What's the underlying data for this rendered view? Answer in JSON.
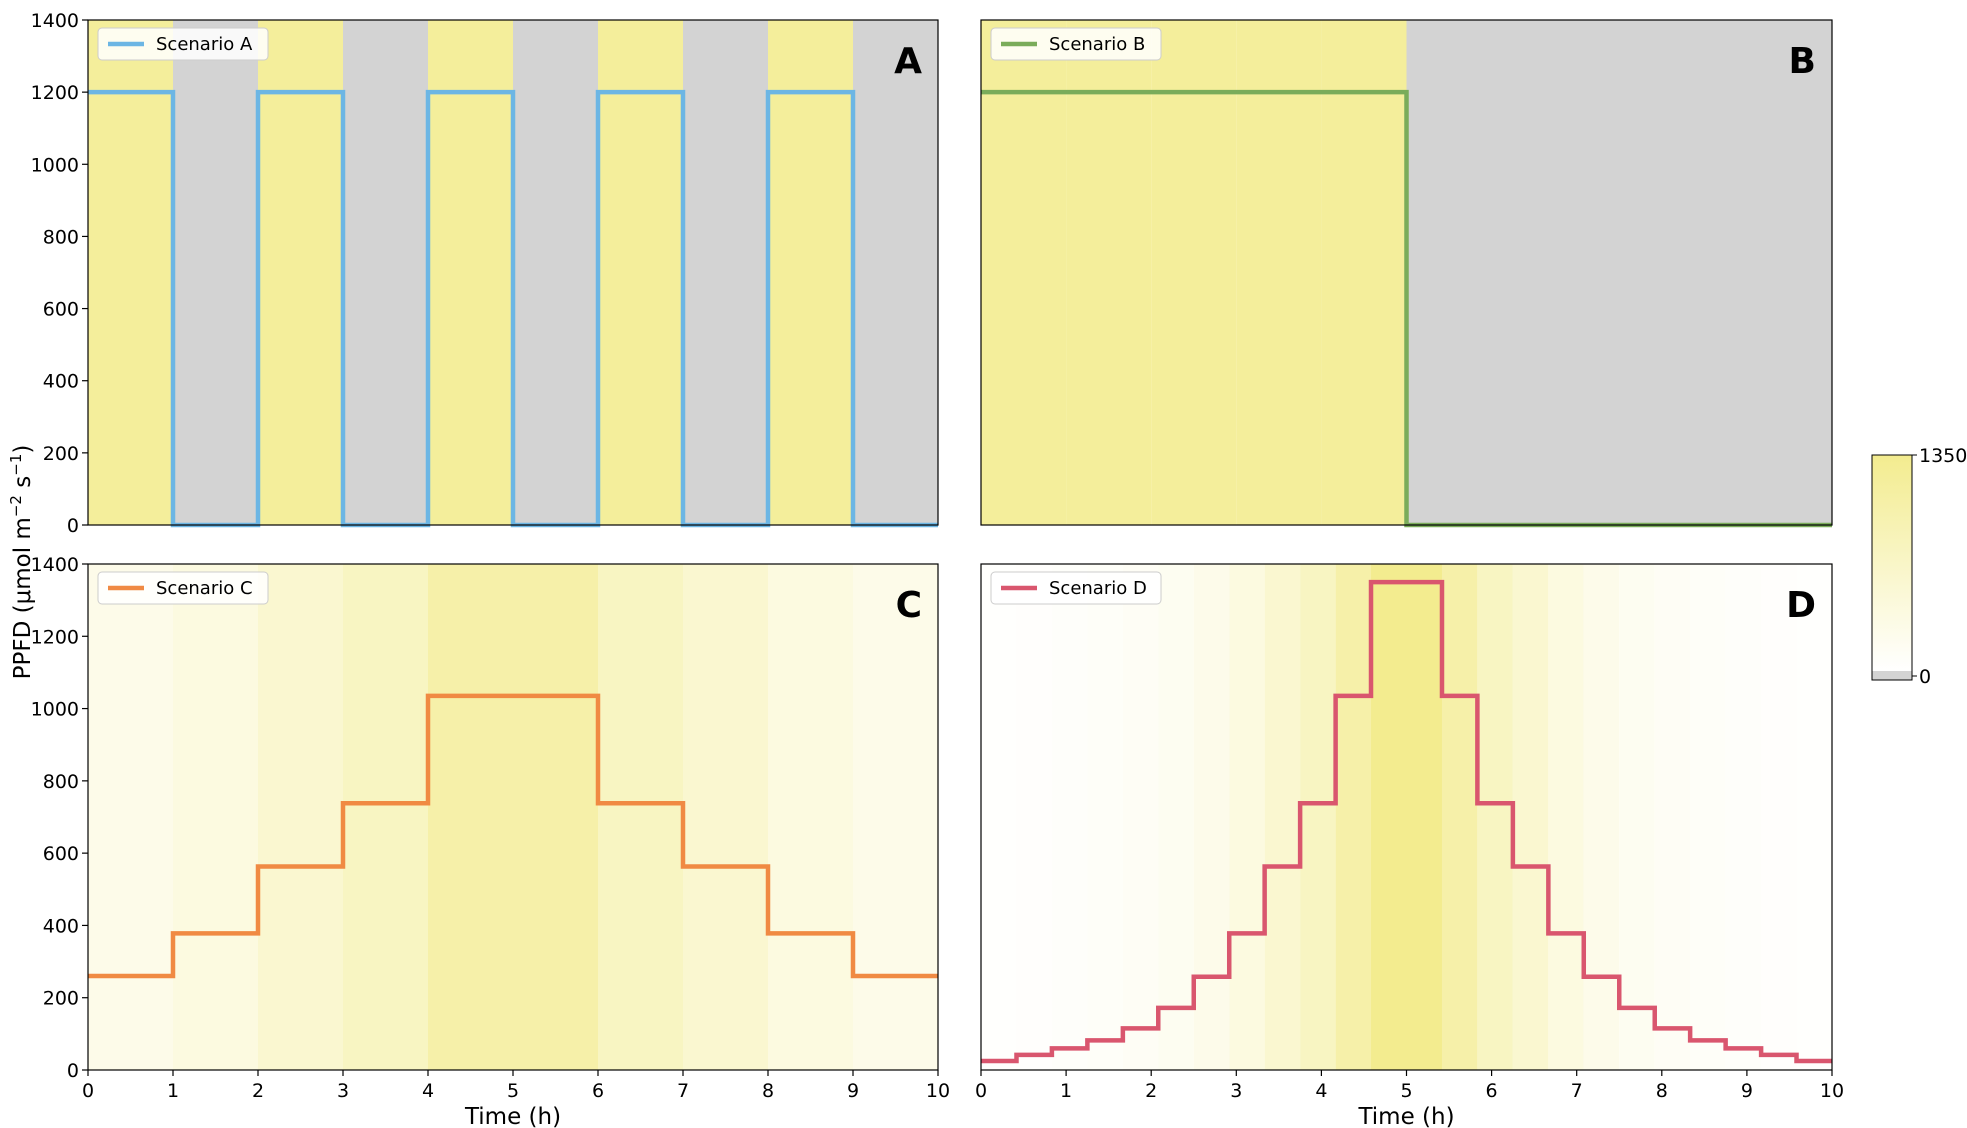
{
  "figure": {
    "ylabel": "PPFD (μmol m⁻² s⁻¹)",
    "ylabel_parts": {
      "prefix": "PPFD (μmol m",
      "exp1": "−2",
      "mid": " s",
      "exp2": "−1",
      "suffix": ")"
    }
  },
  "colorbar": {
    "max_label": "1350",
    "min_label": "0",
    "range": [
      0,
      1350
    ],
    "colors": {
      "zero": "#d3d3d3",
      "low": "#ffffff",
      "high": "#f3ec8f"
    }
  },
  "chart_data": [
    {
      "type": "line",
      "panel": "A",
      "legend": "Scenario A",
      "color": "#6cb6e4",
      "xlabel": "",
      "ylabel": "PPFD (μmol m⁻² s⁻¹)",
      "xlim": [
        0,
        10
      ],
      "ylim": [
        0,
        1400
      ],
      "xticks": [],
      "yticks": [
        0,
        200,
        400,
        600,
        800,
        1000,
        1200,
        1400
      ],
      "steps": [
        {
          "x0": 0,
          "x1": 1,
          "y": 1200
        },
        {
          "x0": 1,
          "x1": 2,
          "y": 0
        },
        {
          "x0": 2,
          "x1": 3,
          "y": 1200
        },
        {
          "x0": 3,
          "x1": 4,
          "y": 0
        },
        {
          "x0": 4,
          "x1": 5,
          "y": 1200
        },
        {
          "x0": 5,
          "x1": 6,
          "y": 0
        },
        {
          "x0": 6,
          "x1": 7,
          "y": 1200
        },
        {
          "x0": 7,
          "x1": 8,
          "y": 0
        },
        {
          "x0": 8,
          "x1": 9,
          "y": 1200
        },
        {
          "x0": 9,
          "x1": 10,
          "y": 0
        }
      ]
    },
    {
      "type": "line",
      "panel": "B",
      "legend": "Scenario B",
      "color": "#7aac5a",
      "xlabel": "",
      "ylabel": "",
      "xlim": [
        0,
        10
      ],
      "ylim": [
        0,
        1400
      ],
      "xticks": [],
      "yticks": [],
      "steps": [
        {
          "x0": 0,
          "x1": 1,
          "y": 1200
        },
        {
          "x0": 1,
          "x1": 2,
          "y": 1200
        },
        {
          "x0": 2,
          "x1": 3,
          "y": 1200
        },
        {
          "x0": 3,
          "x1": 4,
          "y": 1200
        },
        {
          "x0": 4,
          "x1": 5,
          "y": 1200
        },
        {
          "x0": 5,
          "x1": 10,
          "y": 0
        }
      ]
    },
    {
      "type": "line",
      "panel": "C",
      "legend": "Scenario C",
      "color": "#f08a43",
      "xlabel": "Time (h)",
      "ylabel": "PPFD (μmol m⁻² s⁻¹)",
      "xlim": [
        0,
        10
      ],
      "ylim": [
        0,
        1400
      ],
      "xticks": [
        0,
        1,
        2,
        3,
        4,
        5,
        6,
        7,
        8,
        9,
        10
      ],
      "yticks": [
        0,
        200,
        400,
        600,
        800,
        1000,
        1200,
        1400
      ],
      "steps": [
        {
          "x0": 0,
          "x1": 1,
          "y": 260
        },
        {
          "x0": 1,
          "x1": 2,
          "y": 378
        },
        {
          "x0": 2,
          "x1": 3,
          "y": 563
        },
        {
          "x0": 3,
          "x1": 4,
          "y": 738
        },
        {
          "x0": 4,
          "x1": 6,
          "y": 1035
        },
        {
          "x0": 6,
          "x1": 7,
          "y": 738
        },
        {
          "x0": 7,
          "x1": 8,
          "y": 563
        },
        {
          "x0": 8,
          "x1": 9,
          "y": 378
        },
        {
          "x0": 9,
          "x1": 10,
          "y": 260
        }
      ]
    },
    {
      "type": "line",
      "panel": "D",
      "legend": "Scenario D",
      "color": "#d9566e",
      "xlabel": "Time (h)",
      "ylabel": "",
      "xlim": [
        0,
        10
      ],
      "ylim": [
        0,
        1400
      ],
      "xticks": [
        0,
        1,
        2,
        3,
        4,
        5,
        6,
        7,
        8,
        9,
        10
      ],
      "yticks": [],
      "steps": [
        {
          "x0": 0,
          "x1": 0.417,
          "y": 25
        },
        {
          "x0": 0.417,
          "x1": 0.833,
          "y": 42
        },
        {
          "x0": 0.833,
          "x1": 1.25,
          "y": 60
        },
        {
          "x0": 1.25,
          "x1": 1.667,
          "y": 82
        },
        {
          "x0": 1.667,
          "x1": 2.083,
          "y": 115
        },
        {
          "x0": 2.083,
          "x1": 2.5,
          "y": 172
        },
        {
          "x0": 2.5,
          "x1": 2.917,
          "y": 258
        },
        {
          "x0": 2.917,
          "x1": 3.333,
          "y": 378
        },
        {
          "x0": 3.333,
          "x1": 3.75,
          "y": 563
        },
        {
          "x0": 3.75,
          "x1": 4.167,
          "y": 738
        },
        {
          "x0": 4.167,
          "x1": 4.583,
          "y": 1035
        },
        {
          "x0": 4.583,
          "x1": 5.417,
          "y": 1350
        },
        {
          "x0": 5.417,
          "x1": 5.833,
          "y": 1035
        },
        {
          "x0": 5.833,
          "x1": 6.25,
          "y": 738
        },
        {
          "x0": 6.25,
          "x1": 6.667,
          "y": 563
        },
        {
          "x0": 6.667,
          "x1": 7.083,
          "y": 378
        },
        {
          "x0": 7.083,
          "x1": 7.5,
          "y": 258
        },
        {
          "x0": 7.5,
          "x1": 7.917,
          "y": 172
        },
        {
          "x0": 7.917,
          "x1": 8.333,
          "y": 115
        },
        {
          "x0": 8.333,
          "x1": 8.75,
          "y": 82
        },
        {
          "x0": 8.75,
          "x1": 9.167,
          "y": 60
        },
        {
          "x0": 9.167,
          "x1": 9.583,
          "y": 42
        },
        {
          "x0": 9.583,
          "x1": 10,
          "y": 25
        }
      ]
    }
  ]
}
